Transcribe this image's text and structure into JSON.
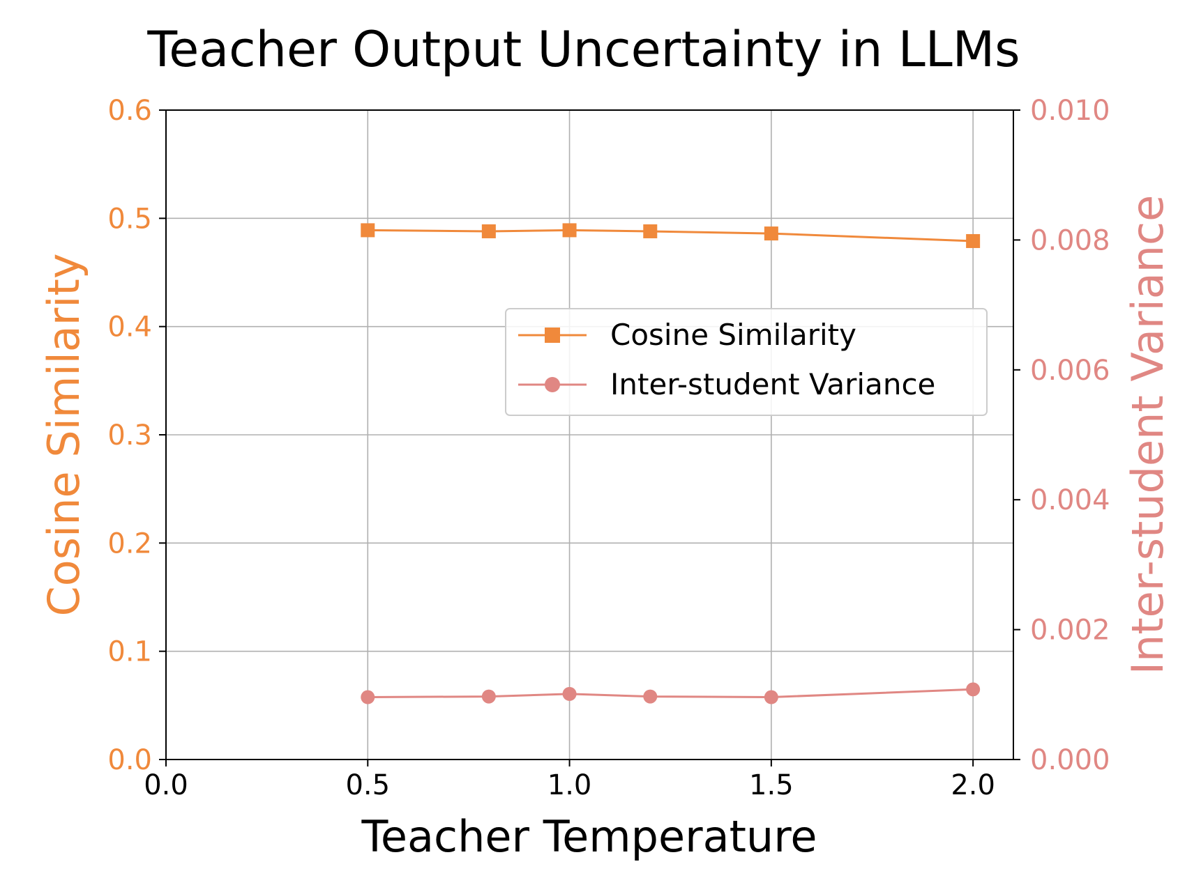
{
  "chart_data": {
    "type": "line",
    "title": "Teacher Output Uncertainty in LLMs",
    "xlabel": "Teacher Temperature",
    "ylabel_left": "Cosine Similarity",
    "ylabel_right": "Inter-student Variance",
    "xlim": [
      0.0,
      2.1
    ],
    "ylim_left": [
      0.0,
      0.6
    ],
    "ylim_right": [
      0.0,
      0.01
    ],
    "xticks": [
      0.0,
      0.5,
      1.0,
      1.5,
      2.0
    ],
    "xtick_labels": [
      "0.0",
      "0.5",
      "1.0",
      "1.5",
      "2.0"
    ],
    "yticks_left": [
      0.0,
      0.1,
      0.2,
      0.3,
      0.4,
      0.5,
      0.6
    ],
    "ytick_labels_left": [
      "0.0",
      "0.1",
      "0.2",
      "0.3",
      "0.4",
      "0.5",
      "0.6"
    ],
    "yticks_right": [
      0.0,
      0.002,
      0.004,
      0.006,
      0.008,
      0.01
    ],
    "ytick_labels_right": [
      "0.000",
      "0.002",
      "0.004",
      "0.006",
      "0.008",
      "0.010"
    ],
    "grid": true,
    "legend_position": "center-right",
    "series": [
      {
        "name": "Cosine Similarity",
        "axis": "left",
        "marker": "square",
        "color": "#F0893B",
        "x": [
          0.5,
          0.8,
          1.0,
          1.2,
          1.5,
          2.0
        ],
        "y": [
          0.489,
          0.488,
          0.489,
          0.488,
          0.486,
          0.479
        ]
      },
      {
        "name": "Inter-student Variance",
        "axis": "right",
        "marker": "circle",
        "color": "#E08783",
        "x": [
          0.5,
          0.8,
          1.0,
          1.2,
          1.5,
          2.0
        ],
        "y": [
          0.00096,
          0.00097,
          0.00101,
          0.00097,
          0.00096,
          0.00108
        ]
      }
    ]
  }
}
